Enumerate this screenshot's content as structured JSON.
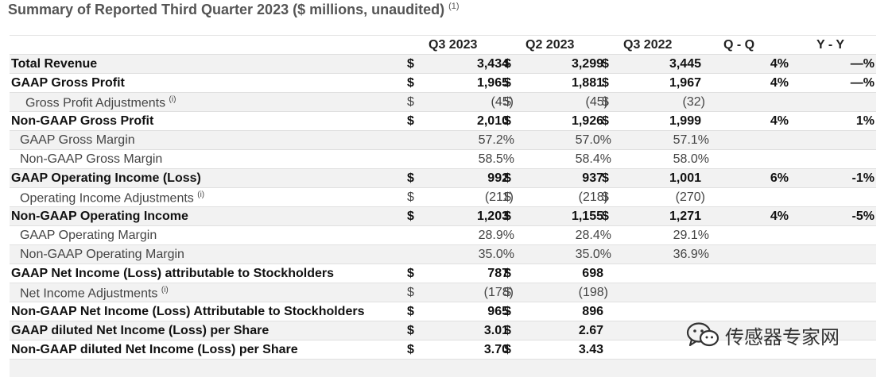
{
  "title": "Summary of Reported Third Quarter 2023 ($ millions, unaudited)",
  "title_note": "(1)",
  "columns": [
    "Q3 2023",
    "Q2 2023",
    "Q3 2022",
    "Q - Q",
    "Y - Y"
  ],
  "rows": [
    {
      "label": "Total Revenue",
      "note": "",
      "style": "bold",
      "indent": 0,
      "d1": "$",
      "v1": "3,434",
      "d2": "$",
      "v2": "3,299",
      "d3": "$",
      "v3": "3,445",
      "qq": "4%",
      "yy": "—%"
    },
    {
      "label": "GAAP Gross Profit",
      "note": "",
      "style": "bold",
      "indent": 0,
      "d1": "$",
      "v1": "1,965",
      "d2": "$",
      "v2": "1,881",
      "d3": "$",
      "v3": "1,967",
      "qq": "4%",
      "yy": "—%"
    },
    {
      "label": "Gross Profit Adjustments",
      "note": "(i)",
      "style": "norm",
      "indent": 1,
      "d1": "$",
      "v1": "(45)",
      "d2": "$",
      "v2": "(45)",
      "d3": "$",
      "v3": "(32)",
      "qq": "",
      "yy": ""
    },
    {
      "label": "Non-GAAP Gross Profit",
      "note": "",
      "style": "bold",
      "indent": 0,
      "d1": "$",
      "v1": "2,010",
      "d2": "$",
      "v2": "1,926",
      "d3": "$",
      "v3": "1,999",
      "qq": "4%",
      "yy": "1%"
    },
    {
      "label": "GAAP Gross Margin",
      "note": "",
      "style": "norm",
      "indent": 2,
      "d1": "",
      "v1": "57.2%",
      "d2": "",
      "v2": "57.0%",
      "d3": "",
      "v3": "57.1%",
      "qq": "",
      "yy": ""
    },
    {
      "label": "Non-GAAP Gross Margin",
      "note": "",
      "style": "norm",
      "indent": 2,
      "d1": "",
      "v1": "58.5%",
      "d2": "",
      "v2": "58.4%",
      "d3": "",
      "v3": "58.0%",
      "qq": "",
      "yy": ""
    },
    {
      "label": "GAAP Operating Income (Loss)",
      "note": "",
      "style": "bold",
      "indent": 0,
      "d1": "$",
      "v1": "992",
      "d2": "$",
      "v2": "937",
      "d3": "$",
      "v3": "1,001",
      "qq": "6%",
      "yy": "-1%"
    },
    {
      "label": "Operating Income Adjustments",
      "note": "(i)",
      "style": "norm",
      "indent": 2,
      "d1": "$",
      "v1": "(211)",
      "d2": "$",
      "v2": "(218)",
      "d3": "$",
      "v3": "(270)",
      "qq": "",
      "yy": ""
    },
    {
      "label": "Non-GAAP Operating Income",
      "note": "",
      "style": "bold",
      "indent": 0,
      "d1": "$",
      "v1": "1,203",
      "d2": "$",
      "v2": "1,155",
      "d3": "$",
      "v3": "1,271",
      "qq": "4%",
      "yy": "-5%"
    },
    {
      "label": "GAAP Operating Margin",
      "note": "",
      "style": "norm",
      "indent": 2,
      "d1": "",
      "v1": "28.9%",
      "d2": "",
      "v2": "28.4%",
      "d3": "",
      "v3": "29.1%",
      "qq": "",
      "yy": ""
    },
    {
      "label": "Non-GAAP Operating Margin",
      "note": "",
      "style": "norm",
      "indent": 2,
      "d1": "",
      "v1": "35.0%",
      "d2": "",
      "v2": "35.0%",
      "d3": "",
      "v3": "36.9%",
      "qq": "",
      "yy": ""
    },
    {
      "label": "GAAP Net Income (Loss) attributable to Stockholders",
      "note": "",
      "style": "bold",
      "indent": 0,
      "d1": "$",
      "v1": "787",
      "d2": "$",
      "v2": "698",
      "d3": "",
      "v3": "",
      "qq": "",
      "yy": ""
    },
    {
      "label": "Net Income Adjustments",
      "note": "(i)",
      "style": "norm",
      "indent": 2,
      "d1": "$",
      "v1": "(178)",
      "d2": "$",
      "v2": "(198)",
      "d3": "",
      "v3": "",
      "qq": "",
      "yy": ""
    },
    {
      "label": "Non-GAAP Net Income (Loss) Attributable to Stockholders",
      "note": "",
      "style": "bold",
      "indent": 0,
      "d1": "$",
      "v1": "965",
      "d2": "$",
      "v2": "896",
      "d3": "",
      "v3": "",
      "qq": "",
      "yy": ""
    },
    {
      "label": "GAAP diluted Net Income (Loss) per Share",
      "note": "",
      "style": "bold",
      "indent": 0,
      "d1": "$",
      "v1": "3.01",
      "d2": "$",
      "v2": "2.67",
      "d3": "",
      "v3": "",
      "qq": "",
      "yy": ""
    },
    {
      "label": "Non-GAAP diluted Net Income (Loss) per Share",
      "note": "",
      "style": "bold",
      "indent": 0,
      "d1": "$",
      "v1": "3.70",
      "d2": "$",
      "v2": "3.43",
      "d3": "",
      "v3": "",
      "qq": "",
      "yy": ""
    }
  ],
  "watermark": {
    "text": "传感器专家网",
    "icon": "wechat-icon",
    "color": "#333333"
  }
}
